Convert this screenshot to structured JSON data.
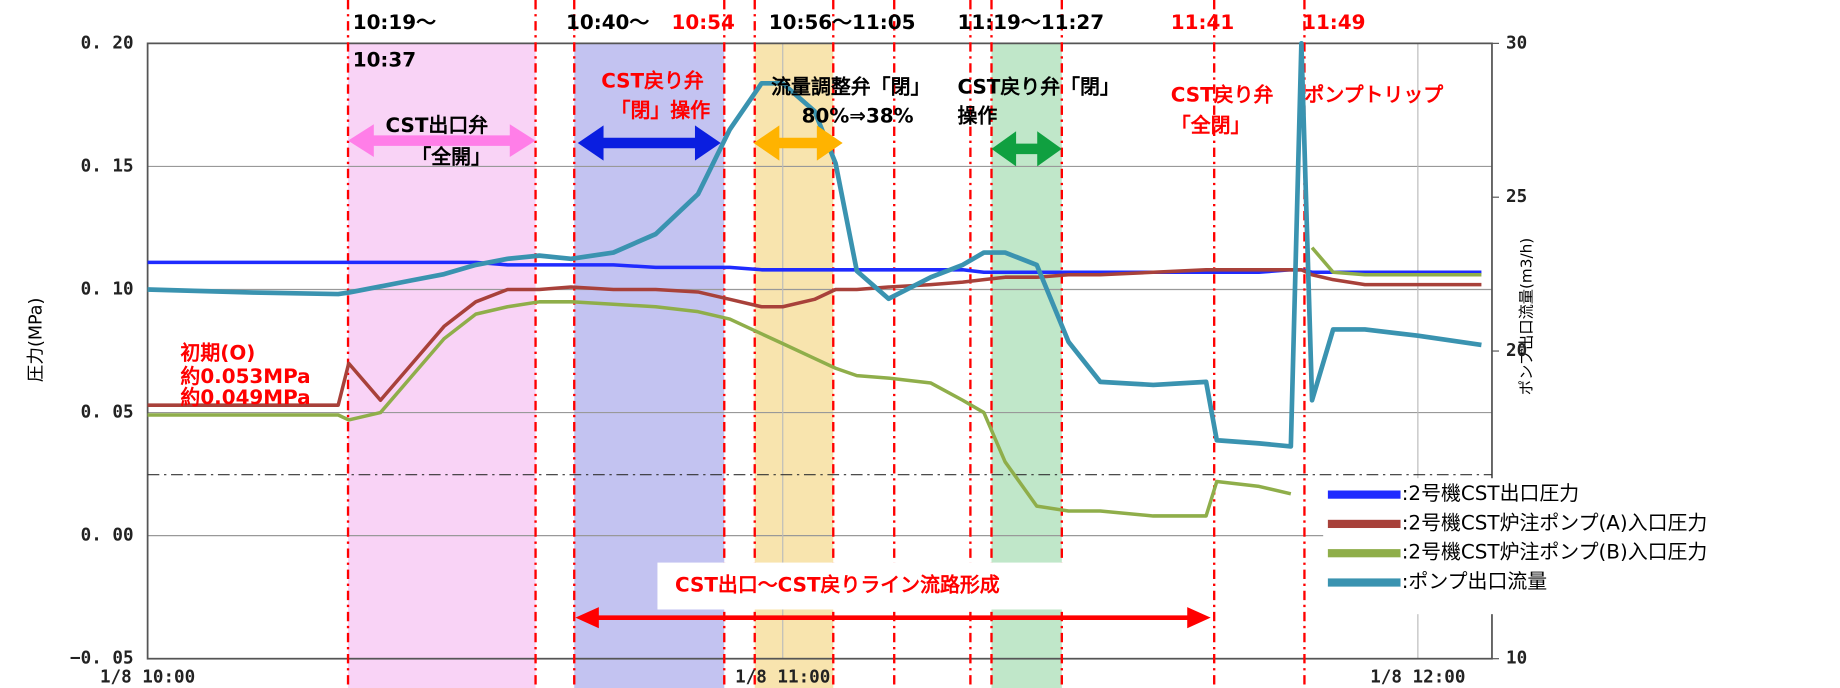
{
  "chart_data": {
    "type": "line",
    "y_label": "圧力(MPa)",
    "y2_label": "ポンプ出口流量(m3/h)",
    "x": [
      "10:00",
      "10:10",
      "10:18",
      "10:19",
      "10:22",
      "10:25",
      "10:28",
      "10:31",
      "10:34",
      "10:37",
      "10:40",
      "10:44",
      "10:48",
      "10:52",
      "10:55",
      "10:58",
      "11:00",
      "11:03",
      "11:05",
      "11:07",
      "11:10",
      "11:14",
      "11:17",
      "11:19",
      "11:21",
      "11:24",
      "11:27",
      "11:30",
      "11:35",
      "11:40",
      "11:41",
      "11:45",
      "11:48",
      "11:49",
      "11:50",
      "11:52",
      "11:55",
      "12:00",
      "12:06"
    ],
    "xlim": [
      "10:00",
      "12:07"
    ],
    "xticks": [
      {
        "value": "10:00",
        "label": "1/8 10:00"
      },
      {
        "value": "11:00",
        "label": "1/8 11:00"
      },
      {
        "value": "12:00",
        "label": "1/8 12:00"
      }
    ],
    "ylim": [
      -0.05,
      0.2
    ],
    "yticks": [
      {
        "value": -0.05,
        "label": "−0. 05"
      },
      {
        "value": 0,
        "label": "0. 00"
      },
      {
        "value": 0.05,
        "label": "0. 05"
      },
      {
        "value": 0.1,
        "label": "0. 10"
      },
      {
        "value": 0.15,
        "label": "0. 15"
      },
      {
        "value": 0.2,
        "label": "0. 20"
      }
    ],
    "y2lim": [
      10,
      30
    ],
    "y2ticks": [
      10,
      20,
      25,
      30
    ],
    "grid": true,
    "series": [
      {
        "name": ":2号機CST出口圧力",
        "color": "#1f2bff",
        "values": [
          0.111,
          0.111,
          0.111,
          0.111,
          0.111,
          0.111,
          0.111,
          0.111,
          0.11,
          0.11,
          0.11,
          0.11,
          0.109,
          0.109,
          0.109,
          0.108,
          0.108,
          0.108,
          0.108,
          0.108,
          0.108,
          0.108,
          0.108,
          0.107,
          0.107,
          0.107,
          0.107,
          0.107,
          0.107,
          0.107,
          0.107,
          0.107,
          0.108,
          0.108,
          0.107,
          0.107,
          0.107,
          0.107,
          0.107
        ]
      },
      {
        "name": ":2号機CST炉注ポンプ(A)入口圧力",
        "color": "#a8413a",
        "values": [
          0.053,
          0.053,
          0.053,
          0.07,
          0.055,
          0.07,
          0.085,
          0.095,
          0.1,
          0.1,
          0.101,
          0.1,
          0.1,
          0.099,
          0.096,
          0.093,
          0.093,
          0.096,
          0.1,
          0.1,
          0.101,
          0.102,
          0.103,
          0.104,
          0.105,
          0.105,
          0.106,
          0.106,
          0.107,
          0.108,
          0.108,
          0.108,
          0.108,
          0.108,
          0.106,
          0.104,
          0.102,
          0.102,
          0.102
        ]
      },
      {
        "name": ":2号機CST炉注ポンプ(B)入口圧力",
        "color": "#8fae4a",
        "values": [
          0.049,
          0.049,
          0.049,
          0.047,
          0.05,
          0.065,
          0.08,
          0.09,
          0.093,
          0.095,
          0.095,
          0.094,
          0.093,
          0.091,
          0.088,
          0.082,
          0.078,
          0.072,
          0.068,
          0.065,
          0.064,
          0.062,
          0.055,
          0.05,
          0.03,
          0.012,
          0.01,
          0.01,
          0.008,
          0.008,
          0.022,
          0.02,
          0.017,
          null,
          0.117,
          0.107,
          0.106,
          0.106,
          0.106
        ]
      },
      {
        "name": ":ポンプ出口流量",
        "color": "#3a93b0",
        "axis": "y2",
        "values": [
          22.0,
          21.9,
          21.85,
          21.9,
          22.1,
          22.3,
          22.5,
          22.8,
          23.0,
          23.1,
          23.0,
          23.2,
          23.8,
          25.1,
          27.2,
          28.7,
          28.7,
          27.8,
          26.1,
          22.6,
          21.7,
          22.4,
          22.8,
          23.2,
          23.2,
          22.8,
          20.3,
          19.0,
          18.9,
          19.0,
          17.1,
          17.0,
          16.9,
          30,
          18.4,
          20.7,
          20.7,
          20.5,
          20.2
        ]
      }
    ],
    "annotations": [
      {
        "text": "10:19～",
        "color": "#000"
      },
      {
        "text": "10:37",
        "color": "#000"
      },
      {
        "text": "10:40～",
        "color": "#000"
      },
      {
        "text": "10:54",
        "color": "#ff0000"
      },
      {
        "text": "10:56～11:05",
        "color": "#000"
      },
      {
        "text": "11:19～11:27",
        "color": "#000"
      },
      {
        "text": "11:41",
        "color": "#ff0000"
      },
      {
        "text": "11:49",
        "color": "#ff0000"
      },
      {
        "text": "CST出口弁",
        "color": "#000"
      },
      {
        "text": "「全開」",
        "color": "#000"
      },
      {
        "text": "CST戻り弁",
        "color": "#ff0000"
      },
      {
        "text": "「閉」操作",
        "color": "#ff0000"
      },
      {
        "text": "流量調整弁「閉」",
        "color": "#000"
      },
      {
        "text": "80%⇒38%",
        "color": "#000"
      },
      {
        "text": "CST戻り弁「閉」",
        "color": "#000"
      },
      {
        "text": "操作",
        "color": "#000"
      },
      {
        "text": "CST戻り弁",
        "color": "#ff0000"
      },
      {
        "text": "「全閉」",
        "color": "#ff0000"
      },
      {
        "text": "ポンプトリップ",
        "color": "#ff0000"
      },
      {
        "text": "初期(O)",
        "color": "#ff0000"
      },
      {
        "text": "約0.053MPa",
        "color": "#ff0000"
      },
      {
        "text": "約0.049MPa",
        "color": "#ff0000"
      },
      {
        "text": "CST出口～CST戻りライン流路形成",
        "color": "#ff0000"
      }
    ]
  }
}
